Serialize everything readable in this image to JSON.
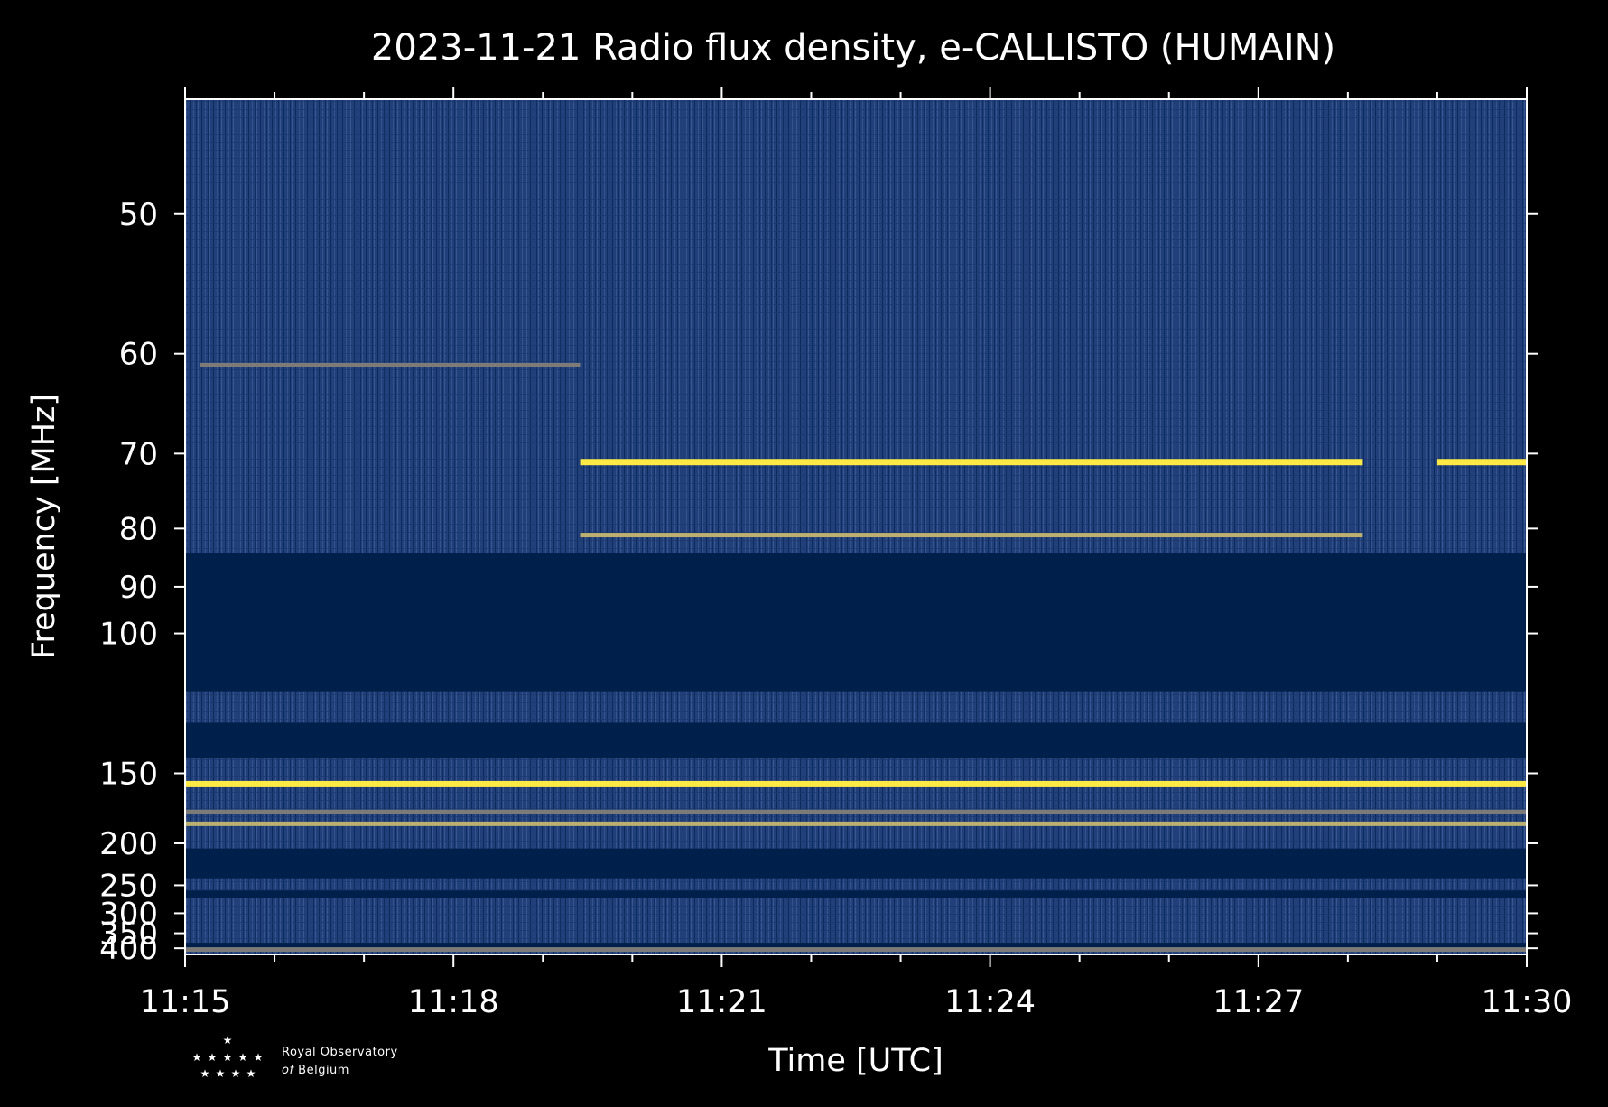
{
  "chart_data": {
    "type": "heatmap",
    "title": "2023-11-21 Radio flux density, e-CALLISTO (HUMAIN)",
    "xlabel": "Time [UTC]",
    "ylabel": "Frequency [MHz]",
    "x_range": [
      "11:15",
      "11:30"
    ],
    "x_ticks": [
      "11:15",
      "11:18",
      "11:21",
      "11:24",
      "11:27",
      "11:30"
    ],
    "y_scale": "reciprocal",
    "y_range_mhz": [
      44,
      425
    ],
    "y_ticks": [
      50,
      60,
      70,
      80,
      90,
      100,
      150,
      200,
      250,
      300,
      350,
      400
    ],
    "colormap": [
      "#00204c",
      "#2d4a85",
      "#7c7b78",
      "#bcaf6f",
      "#ffe945"
    ],
    "background_color": "#000000",
    "bands": [
      {
        "f_from": 84,
        "f_to": 116,
        "level": 0
      },
      {
        "f_from": 127,
        "f_to": 142,
        "level": 0
      },
      {
        "f_from": 205,
        "f_to": 240,
        "level": 0
      },
      {
        "f_from": 258,
        "f_to": 270,
        "level": 0
      },
      {
        "f_from": 380,
        "f_to": 405,
        "level": 0
      }
    ],
    "bright_lines": [
      {
        "f": 71,
        "t_from": "11:19:25",
        "t_to": "11:28:10",
        "level": 4
      },
      {
        "f": 71,
        "t_from": "11:29:00",
        "t_to": "11:30:00",
        "level": 3.5
      },
      {
        "f": 81,
        "t_from": "11:19:25",
        "t_to": "11:28:10",
        "level": 3
      },
      {
        "f": 61,
        "t_from": "11:15:10",
        "t_to": "11:19:25",
        "level": 2
      },
      {
        "f": 156,
        "t_from": "11:15:00",
        "t_to": "11:30:00",
        "level": 4
      },
      {
        "f": 183,
        "t_from": "11:15:00",
        "t_to": "11:30:00",
        "level": 3
      },
      {
        "f": 174,
        "t_from": "11:15:00",
        "t_to": "11:30:00",
        "level": 2
      },
      {
        "f": 405,
        "t_from": "11:15:00",
        "t_to": "11:30:00",
        "level": 2
      }
    ]
  },
  "logo": {
    "line1": "Royal Observatory",
    "line2_prefix": "of",
    "line2_rest": " Belgium"
  }
}
